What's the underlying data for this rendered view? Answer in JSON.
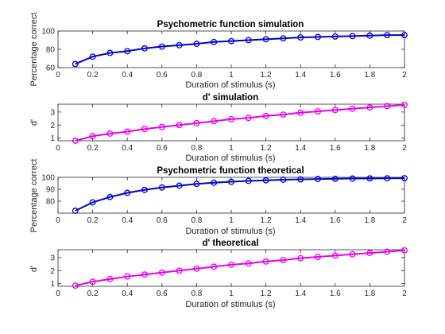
{
  "colors": {
    "blue": "#0000cc",
    "magenta": "#e600e6"
  },
  "chart_data": [
    {
      "type": "line",
      "title": "Psychometric function simulation",
      "xlabel": "Duration of stimulus (s)",
      "ylabel": "Percentage correct",
      "xlim": [
        0,
        2
      ],
      "ylim": [
        60,
        100
      ],
      "xticks": [
        0,
        0.2,
        0.4,
        0.6,
        0.8,
        1,
        1.2,
        1.4,
        1.6,
        1.8,
        2
      ],
      "xtick_labels": [
        "0",
        "0.2",
        "0.4",
        "0.6",
        "0.8",
        "1",
        "1.2",
        "1.4",
        "1.6",
        "1.8",
        "2"
      ],
      "yticks": [
        60,
        80,
        100
      ],
      "ytick_labels": [
        "60",
        "80",
        "100"
      ],
      "color": "#0000cc",
      "marker": "circle",
      "x": [
        0.1,
        0.2,
        0.3,
        0.4,
        0.5,
        0.6,
        0.7,
        0.8,
        0.9,
        1.0,
        1.1,
        1.2,
        1.3,
        1.4,
        1.5,
        1.6,
        1.7,
        1.8,
        1.9,
        2.0
      ],
      "y": [
        64,
        72,
        76,
        78,
        81,
        83,
        84.5,
        86,
        88,
        89,
        90,
        91,
        92,
        93,
        93.5,
        94,
        94.5,
        95,
        95.5,
        95.5
      ]
    },
    {
      "type": "line",
      "title": "d' simulation",
      "xlabel": "Duration of stimulus (s)",
      "ylabel": "d'",
      "xlim": [
        0,
        2
      ],
      "ylim": [
        0.8,
        3.6
      ],
      "xticks": [
        0,
        0.2,
        0.4,
        0.6,
        0.8,
        1,
        1.2,
        1.4,
        1.6,
        1.8,
        2
      ],
      "xtick_labels": [
        "0",
        "0.2",
        "0.4",
        "0.6",
        "0.8",
        "1",
        "1.2",
        "1.4",
        "1.6",
        "1.8",
        "2"
      ],
      "yticks": [
        1,
        2,
        3
      ],
      "ytick_labels": [
        "1",
        "2",
        "3"
      ],
      "color": "#e600e6",
      "marker": "circle",
      "x": [
        0.1,
        0.2,
        0.3,
        0.4,
        0.5,
        0.6,
        0.7,
        0.8,
        0.9,
        1.0,
        1.1,
        1.2,
        1.3,
        1.4,
        1.5,
        1.6,
        1.7,
        1.8,
        1.9,
        2.0
      ],
      "y": [
        0.8,
        1.15,
        1.35,
        1.5,
        1.7,
        1.85,
        2.0,
        2.15,
        2.3,
        2.45,
        2.55,
        2.7,
        2.8,
        2.95,
        3.05,
        3.15,
        3.25,
        3.35,
        3.45,
        3.55
      ]
    },
    {
      "type": "line",
      "title": "Psychometric function theoretical",
      "xlabel": "Duration of stimulus (s)",
      "ylabel": "Percentage correct",
      "xlim": [
        0,
        2
      ],
      "ylim": [
        70,
        100
      ],
      "xticks": [
        0,
        0.2,
        0.4,
        0.6,
        0.8,
        1,
        1.2,
        1.4,
        1.6,
        1.8,
        2
      ],
      "xtick_labels": [
        "0",
        "0.2",
        "0.4",
        "0.6",
        "0.8",
        "1",
        "1.2",
        "1.4",
        "1.6",
        "1.8",
        "2"
      ],
      "yticks": [
        80,
        90,
        100
      ],
      "ytick_labels": [
        "80",
        "90",
        "100"
      ],
      "color": "#0000cc",
      "marker": "circle",
      "x": [
        0.1,
        0.2,
        0.3,
        0.4,
        0.5,
        0.6,
        0.7,
        0.8,
        0.9,
        1.0,
        1.1,
        1.2,
        1.3,
        1.4,
        1.5,
        1.6,
        1.7,
        1.8,
        1.9,
        2.0
      ],
      "y": [
        72,
        79,
        83.5,
        87,
        89.5,
        91.5,
        93,
        94.5,
        95.5,
        96.3,
        97,
        97.5,
        98,
        98.3,
        98.6,
        98.8,
        99,
        99.1,
        99.2,
        99.3
      ]
    },
    {
      "type": "line",
      "title": "d' theoretical",
      "xlabel": "Duration of stimulus (s)",
      "ylabel": "d'",
      "xlim": [
        0,
        2
      ],
      "ylim": [
        0.8,
        3.6
      ],
      "xticks": [
        0,
        0.2,
        0.4,
        0.6,
        0.8,
        1,
        1.2,
        1.4,
        1.6,
        1.8,
        2
      ],
      "xtick_labels": [
        "0",
        "0.2",
        "0.4",
        "0.6",
        "0.8",
        "1",
        "1.2",
        "1.4",
        "1.6",
        "1.8",
        "2"
      ],
      "yticks": [
        1,
        2,
        3
      ],
      "ytick_labels": [
        "1",
        "2",
        "3"
      ],
      "color": "#e600e6",
      "marker": "circle",
      "x": [
        0.1,
        0.2,
        0.3,
        0.4,
        0.5,
        0.6,
        0.7,
        0.8,
        0.9,
        1.0,
        1.1,
        1.2,
        1.3,
        1.4,
        1.5,
        1.6,
        1.7,
        1.8,
        1.9,
        2.0
      ],
      "y": [
        0.85,
        1.15,
        1.35,
        1.55,
        1.7,
        1.85,
        2.0,
        2.15,
        2.3,
        2.45,
        2.55,
        2.7,
        2.8,
        2.95,
        3.05,
        3.15,
        3.25,
        3.35,
        3.45,
        3.55
      ]
    }
  ]
}
